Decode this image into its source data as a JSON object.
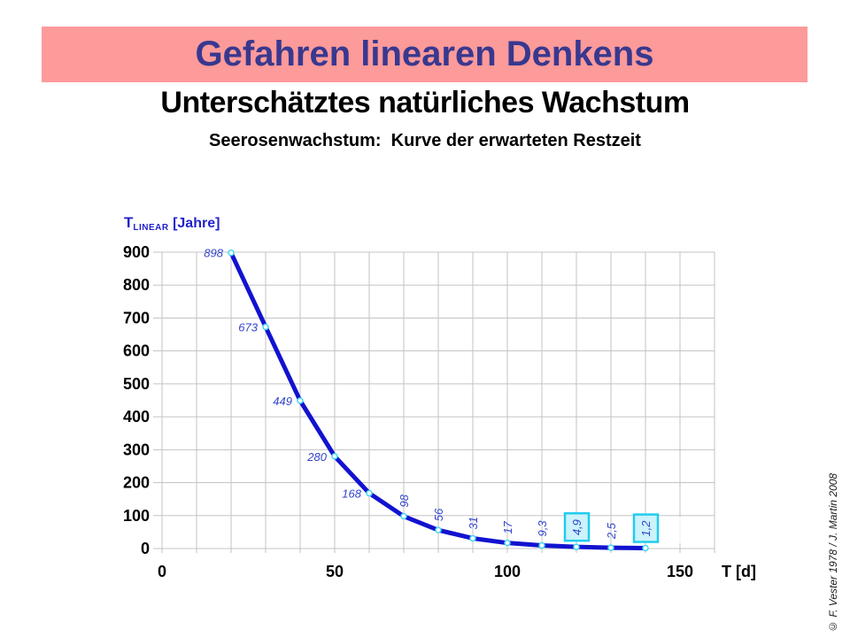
{
  "slide": {
    "banner_title": "Gefahren linearen Denkens",
    "title": "Unterschätztes natürliches Wachstum",
    "subtitle": "Seerosenwachstum:  Kurve der erwarteten Restzeit",
    "credit": "© F. Vester 1978 /  J. Martin 2008"
  },
  "colors": {
    "banner_bg": "#FD9A9A",
    "banner_text": "#38388F",
    "axis_title": "#2222CC",
    "curve": "#1212D0",
    "marker_stroke": "#44D8F0",
    "marker_fill": "#FFFFFF",
    "data_label": "#3344CC",
    "box_border": "#22CCEE",
    "box_fill": "#CCF2FB",
    "grid": "#C3C3C3",
    "tick_text": "#000000"
  },
  "chart_data": {
    "type": "line",
    "title": "Seerosenwachstum: Kurve der erwarteten Restzeit",
    "xlabel": "T [d]",
    "ylabel_main": "T",
    "ylabel_sub": "LINEAR",
    "ylabel_unit": " [Jahre]",
    "x": [
      20,
      30,
      40,
      50,
      60,
      70,
      80,
      90,
      100,
      110,
      120,
      130,
      140
    ],
    "values": [
      898,
      673,
      449,
      280,
      168,
      98,
      56,
      31,
      17,
      9.3,
      4.9,
      2.5,
      1.2
    ],
    "point_labels": [
      "898",
      "673",
      "449",
      "280",
      "168",
      "98",
      "56",
      "31",
      "17",
      "9,3",
      "4,9",
      "2,5",
      "1,2"
    ],
    "rotated_from_index": 5,
    "boxed_indices": [
      10,
      12
    ],
    "xlim": [
      0,
      160
    ],
    "ylim": [
      0,
      900
    ],
    "x_grid_step": 10,
    "y_grid_step": 100,
    "x_tick_values": [
      0,
      50,
      100,
      150
    ],
    "x_tick_labels": [
      "0",
      "50",
      "100",
      "150"
    ],
    "y_tick_values": [
      0,
      100,
      200,
      300,
      400,
      500,
      600,
      700,
      800,
      900
    ],
    "y_tick_labels": [
      "0",
      "100",
      "200",
      "300",
      "400",
      "500",
      "600",
      "700",
      "800",
      "900"
    ],
    "grid": true,
    "legend": false
  }
}
